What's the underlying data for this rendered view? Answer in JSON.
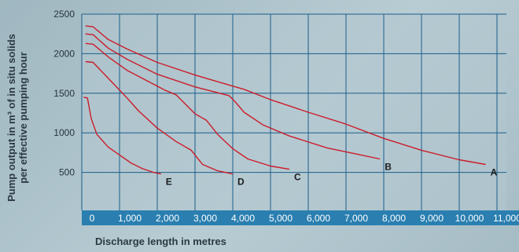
{
  "chart_data": {
    "type": "line",
    "title": "",
    "xlabel": "Discharge length in metres",
    "ylabel": "Pump output in m³ of in situ solids\nper effective pumping hour",
    "xlim": [
      0,
      11000
    ],
    "ylim": [
      0,
      2500
    ],
    "x_ticks": [
      "0",
      "1,000",
      "2,000",
      "3,000",
      "4,000",
      "5,000",
      "6,000",
      "7,000",
      "8,000",
      "9,000",
      "10,000",
      "11,000"
    ],
    "y_ticks": [
      "500",
      "1000",
      "1500",
      "2000",
      "2500"
    ],
    "grid": true,
    "colors": {
      "curve": "#cc1c2a",
      "grid": "#1b5f8c",
      "axis_band": "#2a7fb0"
    },
    "series": [
      {
        "name": "A",
        "points": [
          [
            100,
            2350
          ],
          [
            300,
            2340
          ],
          [
            700,
            2180
          ],
          [
            1200,
            2060
          ],
          [
            2000,
            1890
          ],
          [
            3000,
            1730
          ],
          [
            4000,
            1590
          ],
          [
            4300,
            1550
          ],
          [
            5000,
            1420
          ],
          [
            6000,
            1260
          ],
          [
            7000,
            1110
          ],
          [
            8000,
            930
          ],
          [
            9000,
            780
          ],
          [
            10000,
            660
          ],
          [
            10700,
            600
          ]
        ]
      },
      {
        "name": "B",
        "points": [
          [
            100,
            2250
          ],
          [
            300,
            2240
          ],
          [
            700,
            2070
          ],
          [
            1200,
            1930
          ],
          [
            2000,
            1740
          ],
          [
            3000,
            1580
          ],
          [
            3900,
            1470
          ],
          [
            4050,
            1400
          ],
          [
            4300,
            1260
          ],
          [
            4800,
            1100
          ],
          [
            5500,
            960
          ],
          [
            6500,
            810
          ],
          [
            7300,
            730
          ],
          [
            7900,
            670
          ]
        ]
      },
      {
        "name": "C",
        "points": [
          [
            100,
            2130
          ],
          [
            300,
            2120
          ],
          [
            700,
            1960
          ],
          [
            1200,
            1790
          ],
          [
            2200,
            1540
          ],
          [
            2500,
            1480
          ],
          [
            3000,
            1240
          ],
          [
            3300,
            1160
          ],
          [
            3600,
            980
          ],
          [
            4000,
            800
          ],
          [
            4400,
            670
          ],
          [
            5000,
            580
          ],
          [
            5500,
            540
          ]
        ]
      },
      {
        "name": "D",
        "points": [
          [
            100,
            1900
          ],
          [
            300,
            1890
          ],
          [
            700,
            1690
          ],
          [
            1200,
            1440
          ],
          [
            1500,
            1280
          ],
          [
            2000,
            1060
          ],
          [
            2500,
            890
          ],
          [
            2900,
            780
          ],
          [
            3200,
            600
          ],
          [
            3600,
            520
          ],
          [
            4000,
            480
          ]
        ]
      },
      {
        "name": "E",
        "points": [
          [
            50,
            1450
          ],
          [
            150,
            1440
          ],
          [
            250,
            1180
          ],
          [
            400,
            980
          ],
          [
            700,
            820
          ],
          [
            1000,
            720
          ],
          [
            1300,
            620
          ],
          [
            1600,
            550
          ],
          [
            1900,
            500
          ],
          [
            2100,
            480
          ]
        ]
      }
    ]
  }
}
